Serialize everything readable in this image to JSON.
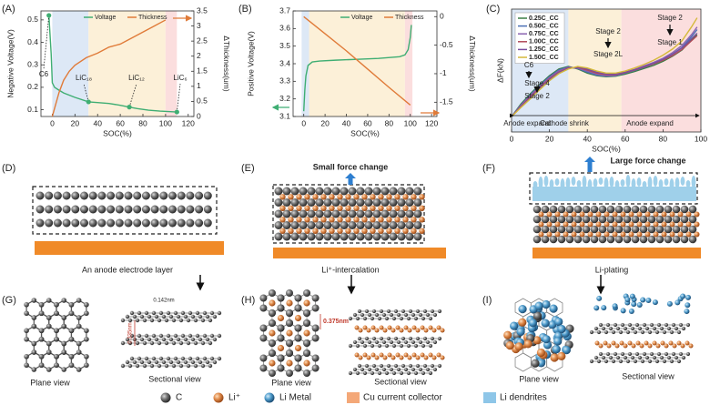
{
  "chart_data": [
    {
      "type": "line",
      "label": "(A)",
      "xlabel": "SOC(%)",
      "ylabel": "Negative Voltage(V)",
      "y2label": "ΔThickness(um)",
      "xlim": [
        -10,
        125
      ],
      "xticks": [
        0,
        20,
        40,
        60,
        80,
        100,
        120
      ],
      "ylim": [
        0.07,
        0.54
      ],
      "yticks": [
        0.1,
        0.2,
        0.3,
        0.4,
        0.5
      ],
      "y2lim": [
        0,
        3.5
      ],
      "y2ticks": [
        0,
        0.5,
        1,
        1.5,
        2,
        2.5,
        3,
        3.5
      ],
      "bands": [
        {
          "from": 0,
          "to": 32,
          "color": "#dde8f6"
        },
        {
          "from": 32,
          "to": 100,
          "color": "#fcf0d8"
        },
        {
          "from": 100,
          "to": 110,
          "color": "#fbdede"
        }
      ],
      "series": [
        {
          "name": "Voltage",
          "color": "#3fae73",
          "x": [
            -3,
            -1,
            0,
            2,
            5,
            10,
            20,
            32,
            40,
            50,
            60,
            68,
            75,
            85,
            95,
            110
          ],
          "values": [
            0.52,
            0.35,
            0.22,
            0.2,
            0.19,
            0.175,
            0.155,
            0.135,
            0.132,
            0.128,
            0.12,
            0.112,
            0.105,
            0.098,
            0.094,
            0.09
          ]
        },
        {
          "name": "Thickness",
          "color": "#e07b39",
          "axis": "y2",
          "x": [
            0,
            3,
            6,
            10,
            15,
            20,
            30,
            40,
            50,
            60,
            70,
            80,
            90,
            100
          ],
          "values": [
            0,
            0.4,
            0.8,
            1.2,
            1.5,
            1.7,
            1.95,
            2.1,
            2.3,
            2.4,
            2.6,
            2.8,
            3.0,
            3.2
          ]
        }
      ],
      "annotations": [
        "C6",
        "LiC₁₈",
        "LiC₁₂",
        "LiC₆"
      ]
    },
    {
      "type": "line",
      "label": "(B)",
      "xlabel": "SOC(%)",
      "ylabel": "Positive Voltage(V)",
      "y2label": "ΔThickness(um)",
      "xlim": [
        -10,
        125
      ],
      "xticks": [
        0,
        20,
        40,
        60,
        80,
        100,
        120
      ],
      "ylim": [
        3.1,
        3.7
      ],
      "yticks": [
        3.1,
        3.2,
        3.3,
        3.4,
        3.5,
        3.6,
        3.7
      ],
      "y2lim": [
        -1.75,
        0.1
      ],
      "y2ticks": [
        0,
        -0.5,
        -1,
        -1.5
      ],
      "bands": [
        {
          "from": -2,
          "to": 5,
          "color": "#dde8f6"
        },
        {
          "from": 5,
          "to": 95,
          "color": "#fcf0d8"
        },
        {
          "from": 95,
          "to": 102,
          "color": "#fbdede"
        }
      ],
      "series": [
        {
          "name": "Voltage",
          "color": "#3fae73",
          "x": [
            0,
            1,
            2,
            4,
            8,
            15,
            30,
            50,
            70,
            90,
            95,
            98,
            100,
            101
          ],
          "values": [
            3.13,
            3.25,
            3.33,
            3.39,
            3.41,
            3.415,
            3.42,
            3.425,
            3.43,
            3.44,
            3.45,
            3.48,
            3.55,
            3.62
          ]
        },
        {
          "name": "Thickness",
          "color": "#e07b39",
          "axis": "y2",
          "x": [
            0,
            20,
            40,
            60,
            80,
            100
          ],
          "values": [
            0,
            -0.3,
            -0.6,
            -0.92,
            -1.24,
            -1.55
          ]
        }
      ]
    },
    {
      "type": "line",
      "label": "(C)",
      "xlabel": "SOC(%)",
      "ylabel": "ΔF(kN)",
      "xlim": [
        0,
        100
      ],
      "xticks": [
        0,
        20,
        40,
        60,
        80,
        100
      ],
      "ylim": [
        -3,
        21
      ],
      "bands": [
        {
          "from": 0,
          "to": 30,
          "color": "#dde8f6"
        },
        {
          "from": 30,
          "to": 58,
          "color": "#fcf0d8"
        },
        {
          "from": 58,
          "to": 100,
          "color": "#fbdede"
        }
      ],
      "x": [
        0,
        5,
        10,
        15,
        20,
        25,
        30,
        35,
        40,
        45,
        50,
        55,
        60,
        65,
        70,
        75,
        80,
        85,
        90,
        95,
        98
      ],
      "series": [
        {
          "name": "0.25C_CC",
          "color": "#3a7d44",
          "values": [
            0,
            2.5,
            4.5,
            6.3,
            8,
            9.3,
            9.8,
            9.3,
            8.5,
            8,
            7.8,
            7.9,
            8.3,
            8.8,
            9.4,
            10,
            10.8,
            11.8,
            13,
            15,
            16
          ]
        },
        {
          "name": "0.50C_CC",
          "color": "#4a6fb5",
          "values": [
            0,
            2.3,
            4.3,
            6.1,
            7.8,
            9.1,
            9.7,
            9.4,
            8.7,
            8.1,
            7.9,
            8,
            8.5,
            9,
            9.6,
            10.3,
            11.1,
            12.2,
            13.5,
            15.6,
            17
          ]
        },
        {
          "name": "0.75C_CC",
          "color": "#8a63b0",
          "values": [
            0,
            2.2,
            4.1,
            5.9,
            7.6,
            8.9,
            9.6,
            9.5,
            8.9,
            8.3,
            8,
            8.1,
            8.6,
            9.2,
            9.9,
            10.6,
            11.4,
            12.5,
            13.9,
            16,
            17.5
          ]
        },
        {
          "name": "1.00C_CC",
          "color": "#b04a5a",
          "values": [
            0,
            2,
            3.9,
            5.7,
            7.4,
            8.7,
            9.5,
            9.6,
            9.1,
            8.5,
            8.2,
            8.2,
            8.6,
            9.1,
            9.7,
            10.3,
            11,
            11.9,
            13.1,
            14.8,
            15.8
          ]
        },
        {
          "name": "1.25C_CC",
          "color": "#7a4fa0",
          "values": [
            0,
            1.9,
            3.7,
            5.5,
            7.2,
            8.6,
            9.4,
            9.7,
            9.3,
            8.7,
            8.3,
            8.3,
            8.7,
            9.2,
            9.8,
            10.4,
            11.2,
            12.2,
            13.4,
            15.2,
            16.3
          ]
        },
        {
          "name": "1.50C_CC",
          "color": "#d4b93a",
          "values": [
            0,
            1.8,
            3.5,
            5.3,
            7,
            8.4,
            9.3,
            9.8,
            9.5,
            8.9,
            8.5,
            8.5,
            8.9,
            9.5,
            10.2,
            11,
            12,
            13.2,
            14.8,
            17.5,
            19.3
          ]
        }
      ],
      "annotations": [
        "Stage 2",
        "Stage 1",
        "Stage 2",
        "Stage 2L",
        "C6",
        "Stage 4",
        "Stage 2",
        "Anode expand",
        "Cathode shrink",
        "Anode expand"
      ]
    }
  ],
  "diagrams": [
    {
      "label": "(D)",
      "caption": "An anode electrode layer"
    },
    {
      "label": "(E)",
      "note": "Small force change",
      "caption": "Li⁺-intercalation"
    },
    {
      "label": "(F)",
      "note": "Large force change",
      "caption": "Li-plating"
    },
    {
      "label": "(G)",
      "plane": "Plane view",
      "section": "Sectional view",
      "bond": "0.142nm",
      "spacing": "0.335nm"
    },
    {
      "label": "(H)",
      "plane": "Plane view",
      "section": "Sectional view",
      "spacing": "0.375nm"
    },
    {
      "label": "(I)",
      "plane": "Plane view",
      "section": "Sectional view"
    }
  ],
  "legend": [
    "C",
    "Li⁺",
    "Li Metal",
    "Cu current collector",
    "Li dendrites"
  ]
}
